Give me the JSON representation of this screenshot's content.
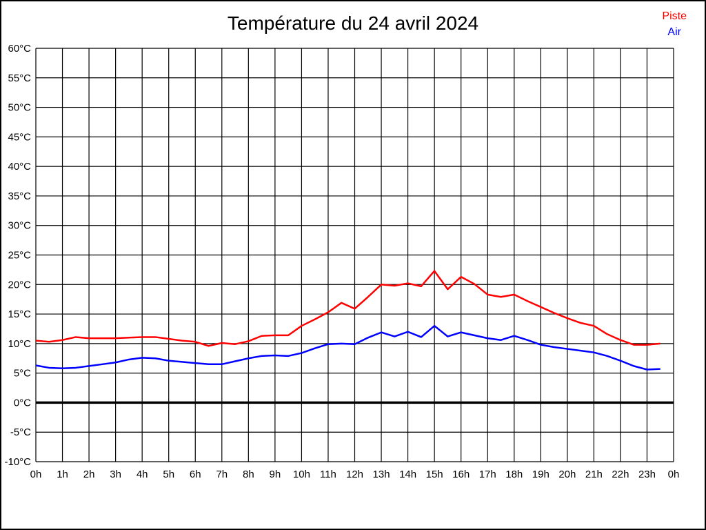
{
  "page": {
    "title": "Température du 24 avril 2024"
  },
  "legend": {
    "items": [
      {
        "label": "Piste",
        "color": "#ff0000"
      },
      {
        "label": "Air",
        "color": "#0000ff"
      }
    ],
    "position": "top-right"
  },
  "chart_data": {
    "type": "line",
    "title": "Température du 24 avril 2024",
    "xlabel": "",
    "ylabel": "",
    "x_axis": {
      "unit": "hour",
      "start": 0,
      "end": 24,
      "tick_step": 1,
      "tick_labels": [
        "0h",
        "1h",
        "2h",
        "3h",
        "4h",
        "5h",
        "6h",
        "7h",
        "8h",
        "9h",
        "10h",
        "11h",
        "12h",
        "13h",
        "14h",
        "15h",
        "16h",
        "17h",
        "18h",
        "19h",
        "20h",
        "21h",
        "22h",
        "23h",
        "0h"
      ]
    },
    "y_axis": {
      "unit": "°C",
      "min": -10,
      "max": 60,
      "tick_step": 5,
      "tick_labels": [
        "60°C",
        "55°C",
        "50°C",
        "45°C",
        "40°C",
        "35°C",
        "30°C",
        "25°C",
        "20°C",
        "15°C",
        "10°C",
        "5°C",
        "0°C",
        "-5°C",
        "-10°C"
      ]
    },
    "grid": {
      "on": true,
      "color": "#000000",
      "line_width": 1.2
    },
    "zero_line": {
      "value": 0,
      "color": "#000000",
      "width": 3.5
    },
    "sample_step_hours": 0.5,
    "sample_start_hour": 0,
    "line_width": 2.5,
    "legend_position": "top-right",
    "series": [
      {
        "name": "Piste",
        "color": "#ff0000",
        "values": [
          10.5,
          10.3,
          10.6,
          11.1,
          10.9,
          10.9,
          10.9,
          11.0,
          11.1,
          11.1,
          10.8,
          10.5,
          10.3,
          9.6,
          10.1,
          9.9,
          10.4,
          11.3,
          11.4,
          11.4,
          13.0,
          14.1,
          15.3,
          16.9,
          15.9,
          17.9,
          20.0,
          19.8,
          20.2,
          19.7,
          22.3,
          19.2,
          21.3,
          20.1,
          18.3,
          17.9,
          18.3,
          17.2,
          16.2,
          15.2,
          14.3,
          13.5,
          13.0,
          11.6,
          10.6,
          9.8,
          9.8,
          10.0
        ]
      },
      {
        "name": "Air",
        "color": "#0000ff",
        "values": [
          6.3,
          5.9,
          5.8,
          5.9,
          6.2,
          6.5,
          6.8,
          7.3,
          7.6,
          7.5,
          7.1,
          6.9,
          6.7,
          6.5,
          6.5,
          7.0,
          7.5,
          7.9,
          8.0,
          7.9,
          8.4,
          9.2,
          9.9,
          10.0,
          9.9,
          11.0,
          11.9,
          11.2,
          12.0,
          11.1,
          13.0,
          11.2,
          11.9,
          11.4,
          10.9,
          10.6,
          11.3,
          10.6,
          9.8,
          9.4,
          9.1,
          8.8,
          8.5,
          7.9,
          7.1,
          6.2,
          5.6,
          5.7
        ]
      }
    ]
  }
}
